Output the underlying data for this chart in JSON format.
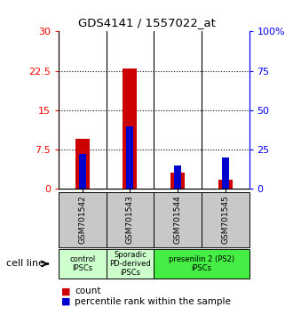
{
  "title": "GDS4141 / 1557022_at",
  "samples": [
    "GSM701542",
    "GSM701543",
    "GSM701544",
    "GSM701545"
  ],
  "count_values": [
    9.5,
    23.0,
    3.2,
    1.8
  ],
  "percentile_values": [
    22.5,
    40.0,
    15.0,
    20.0
  ],
  "ylim_left": [
    0,
    30
  ],
  "ylim_right": [
    0,
    100
  ],
  "yticks_left": [
    0,
    7.5,
    15,
    22.5,
    30
  ],
  "yticks_right": [
    0,
    25,
    50,
    75,
    100
  ],
  "ytick_labels_left": [
    "0",
    "7.5",
    "15",
    "22.5",
    "30"
  ],
  "ytick_labels_right": [
    "0",
    "25",
    "50",
    "75",
    "100%"
  ],
  "hlines": [
    7.5,
    15,
    22.5
  ],
  "bar_color_count": "#cc0000",
  "bar_color_pct": "#0000cc",
  "sample_bg": "#c8c8c8",
  "legend_count_label": "count",
  "legend_pct_label": "percentile rank within the sample",
  "cell_line_label": "cell line",
  "bar_width": 0.3,
  "pct_bar_width": 0.15,
  "groups": [
    {
      "cols": [
        0
      ],
      "label": "control\nIPSCs",
      "color": "#ccffcc"
    },
    {
      "cols": [
        1
      ],
      "label": "Sporadic\nPD-derived\niPSCs",
      "color": "#ccffcc"
    },
    {
      "cols": [
        2,
        3
      ],
      "label": "presenilin 2 (PS2)\niPSCs",
      "color": "#44ee44"
    }
  ]
}
